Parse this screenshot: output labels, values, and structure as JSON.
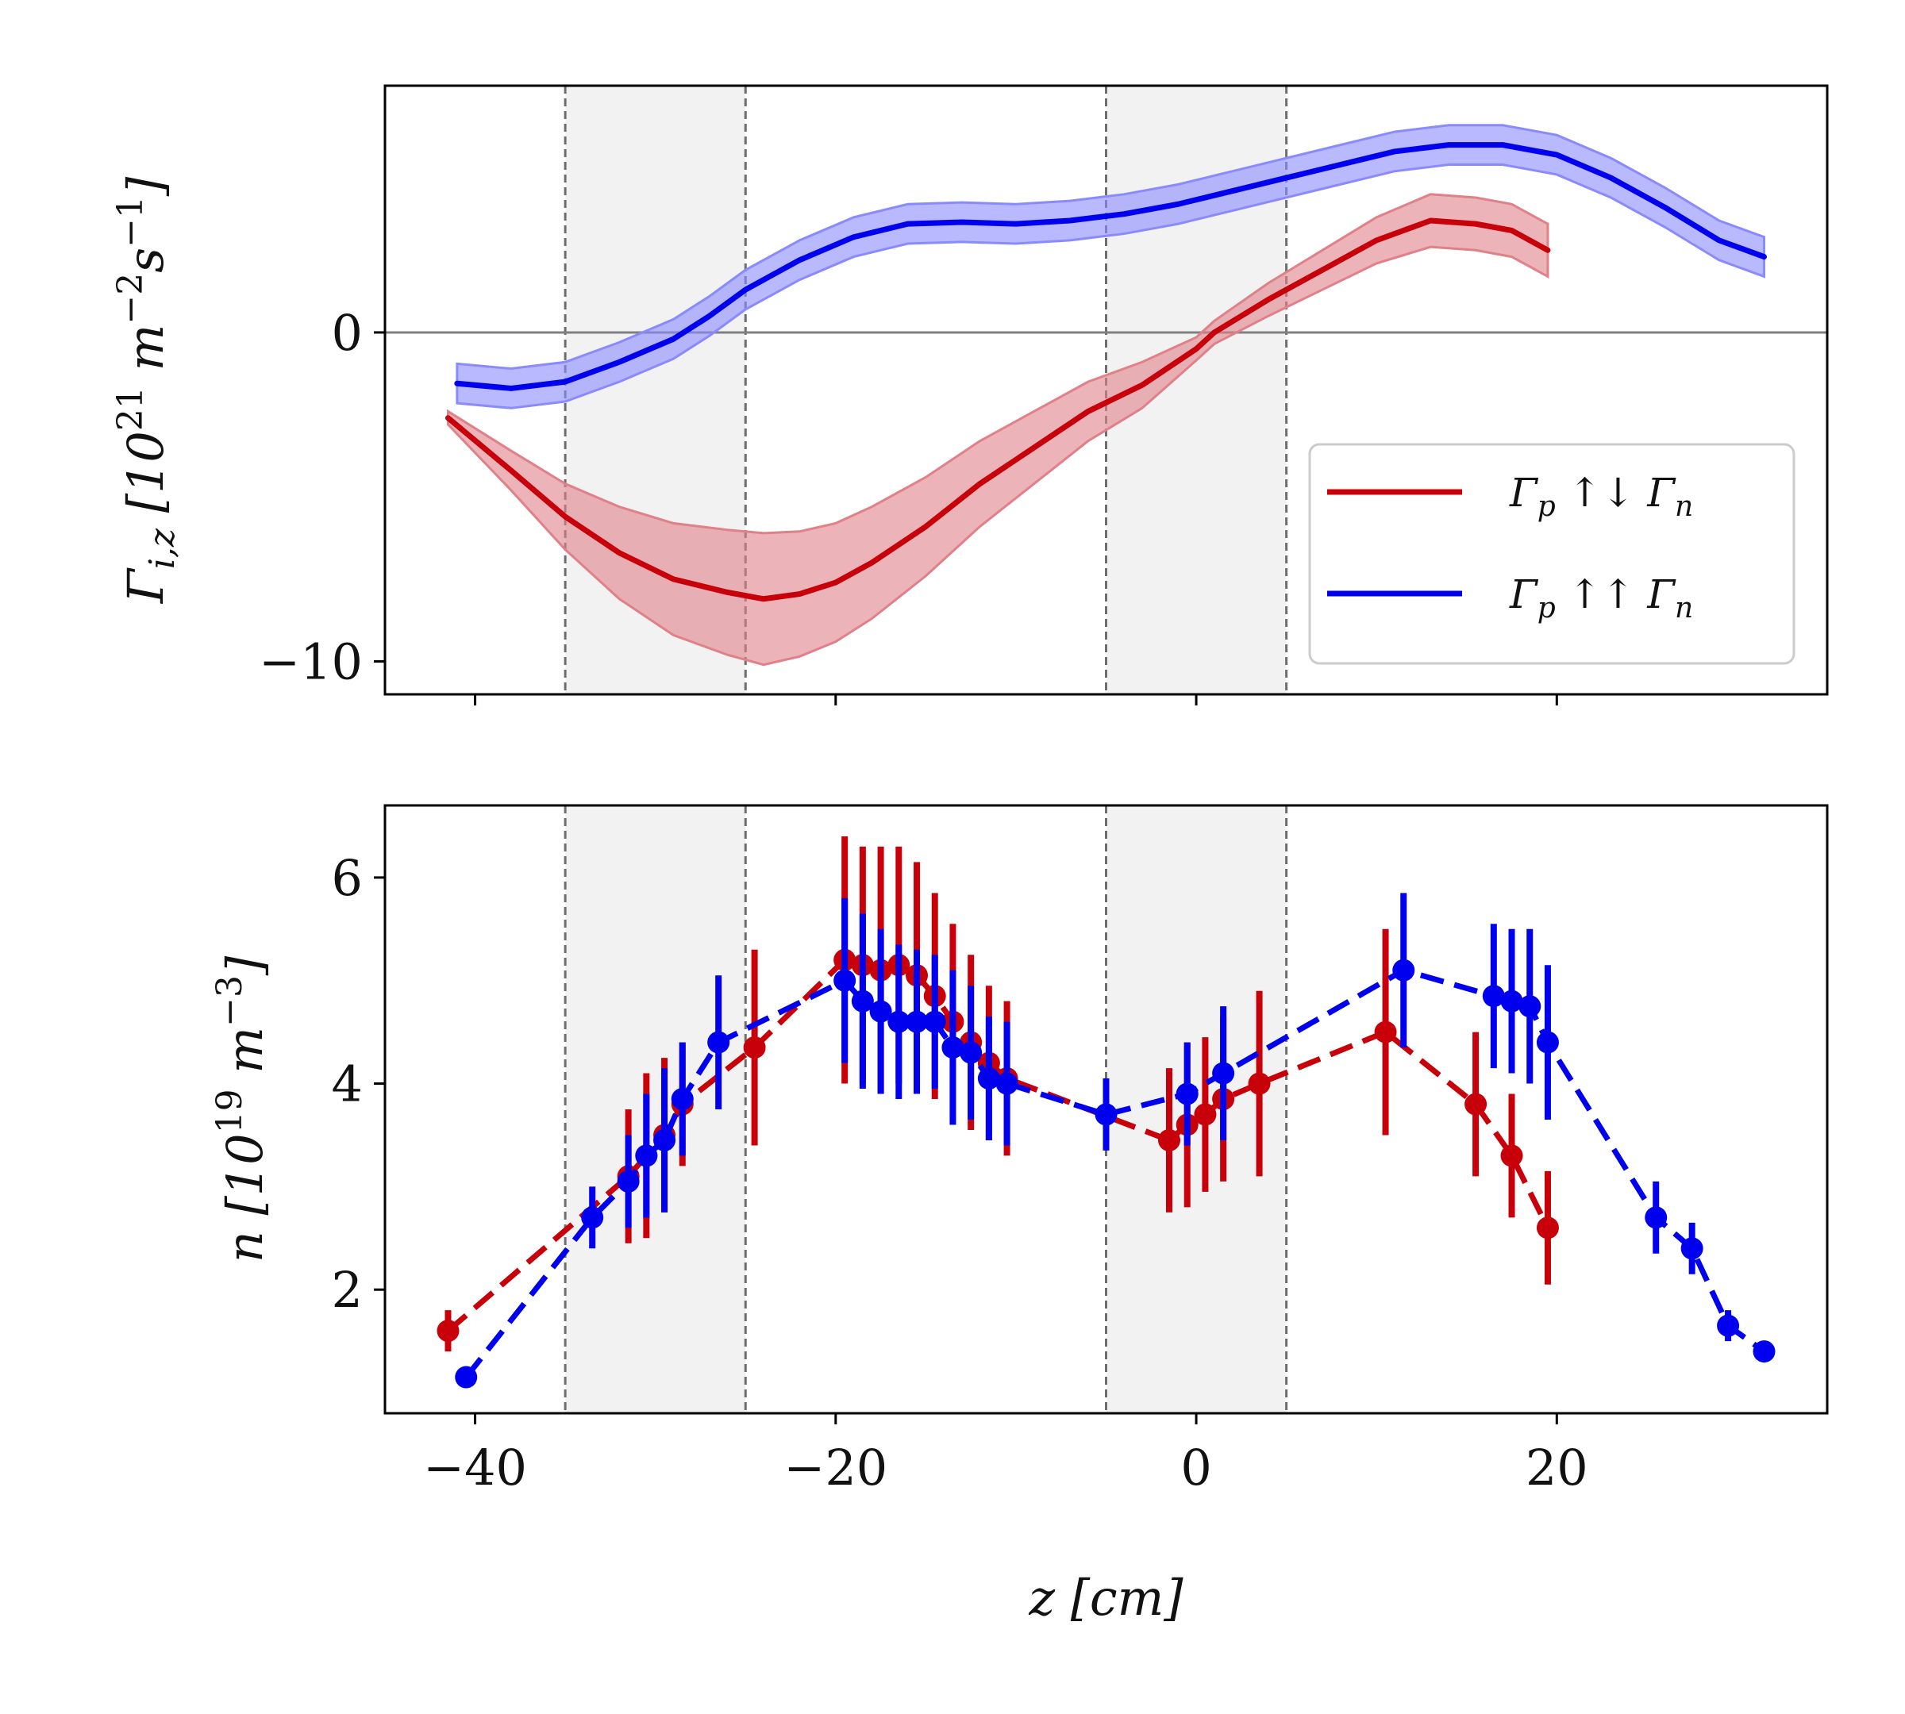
{
  "chart_data": [
    {
      "id": "flux",
      "type": "line",
      "ylabel": "Γ_{i,z} [10^21 m^-2 s^-1]",
      "ylabel_parts": [
        "Γ",
        "i,z",
        " [10",
        "21",
        " m",
        "−2",
        "s",
        "−1",
        "]"
      ],
      "xlim": [
        -45,
        35
      ],
      "ylim": [
        -11,
        7.5
      ],
      "xticks": [
        -40,
        -20,
        0,
        20
      ],
      "yticks": [
        0,
        -10
      ],
      "ytick_labels": [
        "0",
        "−10"
      ],
      "zero_line": 0,
      "shaded_regions": [
        [
          -35,
          -25
        ],
        [
          -5,
          5
        ]
      ],
      "legend": {
        "position": "lower-right"
      },
      "series": [
        {
          "name": "Γ_p ↑↓ Γ_n",
          "label_parts": [
            "Γ",
            "p",
            " ↑↓ Γ",
            "n"
          ],
          "color": "#c8000a",
          "band_color": "#e08088",
          "x": [
            -41.5,
            -38,
            -35,
            -32,
            -29,
            -26,
            -24,
            -22,
            -20,
            -18,
            -15,
            -12,
            -9,
            -6,
            -3,
            0,
            1,
            4,
            7,
            10,
            13,
            15.5,
            17.5,
            19.5
          ],
          "y": [
            -2.6,
            -4.2,
            -5.6,
            -6.7,
            -7.5,
            -7.9,
            -8.1,
            -7.95,
            -7.6,
            -7.0,
            -5.9,
            -4.6,
            -3.5,
            -2.4,
            -1.6,
            -0.5,
            0.0,
            1.0,
            1.9,
            2.8,
            3.4,
            3.3,
            3.1,
            2.5
          ],
          "err": [
            0.2,
            0.6,
            1.0,
            1.4,
            1.7,
            1.9,
            2.0,
            1.9,
            1.8,
            1.7,
            1.5,
            1.3,
            1.1,
            0.9,
            0.7,
            0.35,
            0.35,
            0.5,
            0.6,
            0.7,
            0.8,
            0.8,
            0.8,
            0.8
          ]
        },
        {
          "name": "Γ_p ↑↑ Γ_n",
          "label_parts": [
            "Γ",
            "p",
            " ↑↑ Γ",
            "n"
          ],
          "color": "#0000ee",
          "band_color": "#8a8aff",
          "x": [
            -41,
            -38,
            -35,
            -32,
            -29,
            -27,
            -25,
            -22,
            -19,
            -16,
            -13,
            -10,
            -7,
            -4,
            -1,
            2,
            5,
            8,
            11,
            14,
            17,
            20,
            23,
            26,
            29,
            31.5
          ],
          "y": [
            -1.55,
            -1.7,
            -1.5,
            -0.9,
            -0.2,
            0.5,
            1.3,
            2.2,
            2.9,
            3.3,
            3.35,
            3.3,
            3.4,
            3.6,
            3.9,
            4.3,
            4.7,
            5.1,
            5.5,
            5.7,
            5.7,
            5.4,
            4.7,
            3.8,
            2.8,
            2.3
          ]
        }
      ]
    },
    {
      "id": "density",
      "type": "line",
      "xlabel": "z [cm]",
      "ylabel": "n [10^19 m^-3]",
      "ylabel_parts": [
        "n",
        " [10",
        "19",
        " m",
        "−3",
        "]"
      ],
      "xlim": [
        -45,
        35
      ],
      "ylim": [
        0.8,
        6.7
      ],
      "xticks": [
        -40,
        -20,
        0,
        20
      ],
      "xtick_labels": [
        "−40",
        "−20",
        "0",
        "20"
      ],
      "yticks": [
        2,
        4,
        6
      ],
      "ytick_labels": [
        "2",
        "4",
        "6"
      ],
      "shaded_regions": [
        [
          -35,
          -25
        ],
        [
          -5,
          5
        ]
      ],
      "series": [
        {
          "name": "Γ_p ↑↓ Γ_n",
          "color": "#c8000a",
          "x": [
            -41.5,
            -31.5,
            -30.5,
            -29.5,
            -28.5,
            -24.5,
            -19.5,
            -18.5,
            -17.5,
            -16.5,
            -15.5,
            -14.5,
            -13.5,
            -12.5,
            -11.5,
            -10.5,
            -1.5,
            -0.5,
            0.5,
            1.5,
            3.5,
            10.5,
            15.5,
            17.5,
            19.5
          ],
          "y": [
            1.6,
            3.1,
            3.3,
            3.5,
            3.8,
            4.35,
            5.2,
            5.15,
            5.1,
            5.15,
            5.05,
            4.85,
            4.6,
            4.4,
            4.2,
            4.05,
            3.45,
            3.6,
            3.7,
            3.85,
            4.0,
            4.5,
            3.8,
            3.3,
            2.6
          ],
          "err": [
            0.2,
            0.65,
            0.8,
            0.75,
            0.6,
            0.95,
            1.2,
            1.15,
            1.2,
            1.15,
            1.1,
            1.0,
            0.95,
            0.85,
            0.75,
            0.75,
            0.7,
            0.8,
            0.75,
            0.8,
            0.9,
            1.0,
            0.7,
            0.6,
            0.55
          ]
        },
        {
          "name": "Γ_p ↑↑ Γ_n",
          "color": "#0000ee",
          "x": [
            -40.5,
            -33.5,
            -31.5,
            -30.5,
            -29.5,
            -28.5,
            -26.5,
            -19.5,
            -18.5,
            -17.5,
            -16.5,
            -15.5,
            -14.5,
            -13.5,
            -12.5,
            -11.5,
            -10.5,
            -5,
            -0.5,
            1.5,
            11.5,
            16.5,
            17.5,
            18.5,
            19.5,
            25.5,
            27.5,
            29.5,
            31.5
          ],
          "y": [
            1.15,
            2.7,
            3.05,
            3.3,
            3.45,
            3.85,
            4.4,
            5.0,
            4.8,
            4.7,
            4.6,
            4.6,
            4.6,
            4.35,
            4.3,
            4.05,
            4.0,
            3.7,
            3.9,
            4.1,
            5.1,
            4.85,
            4.8,
            4.75,
            4.4,
            2.7,
            2.4,
            1.65,
            1.4
          ],
          "err": [
            0.05,
            0.3,
            0.45,
            0.6,
            0.7,
            0.55,
            0.65,
            0.8,
            0.85,
            0.8,
            0.75,
            0.7,
            0.65,
            0.75,
            0.65,
            0.6,
            0.6,
            0.35,
            0.5,
            0.65,
            0.75,
            0.7,
            0.7,
            0.75,
            0.75,
            0.35,
            0.25,
            0.15,
            0.05
          ]
        }
      ]
    }
  ]
}
